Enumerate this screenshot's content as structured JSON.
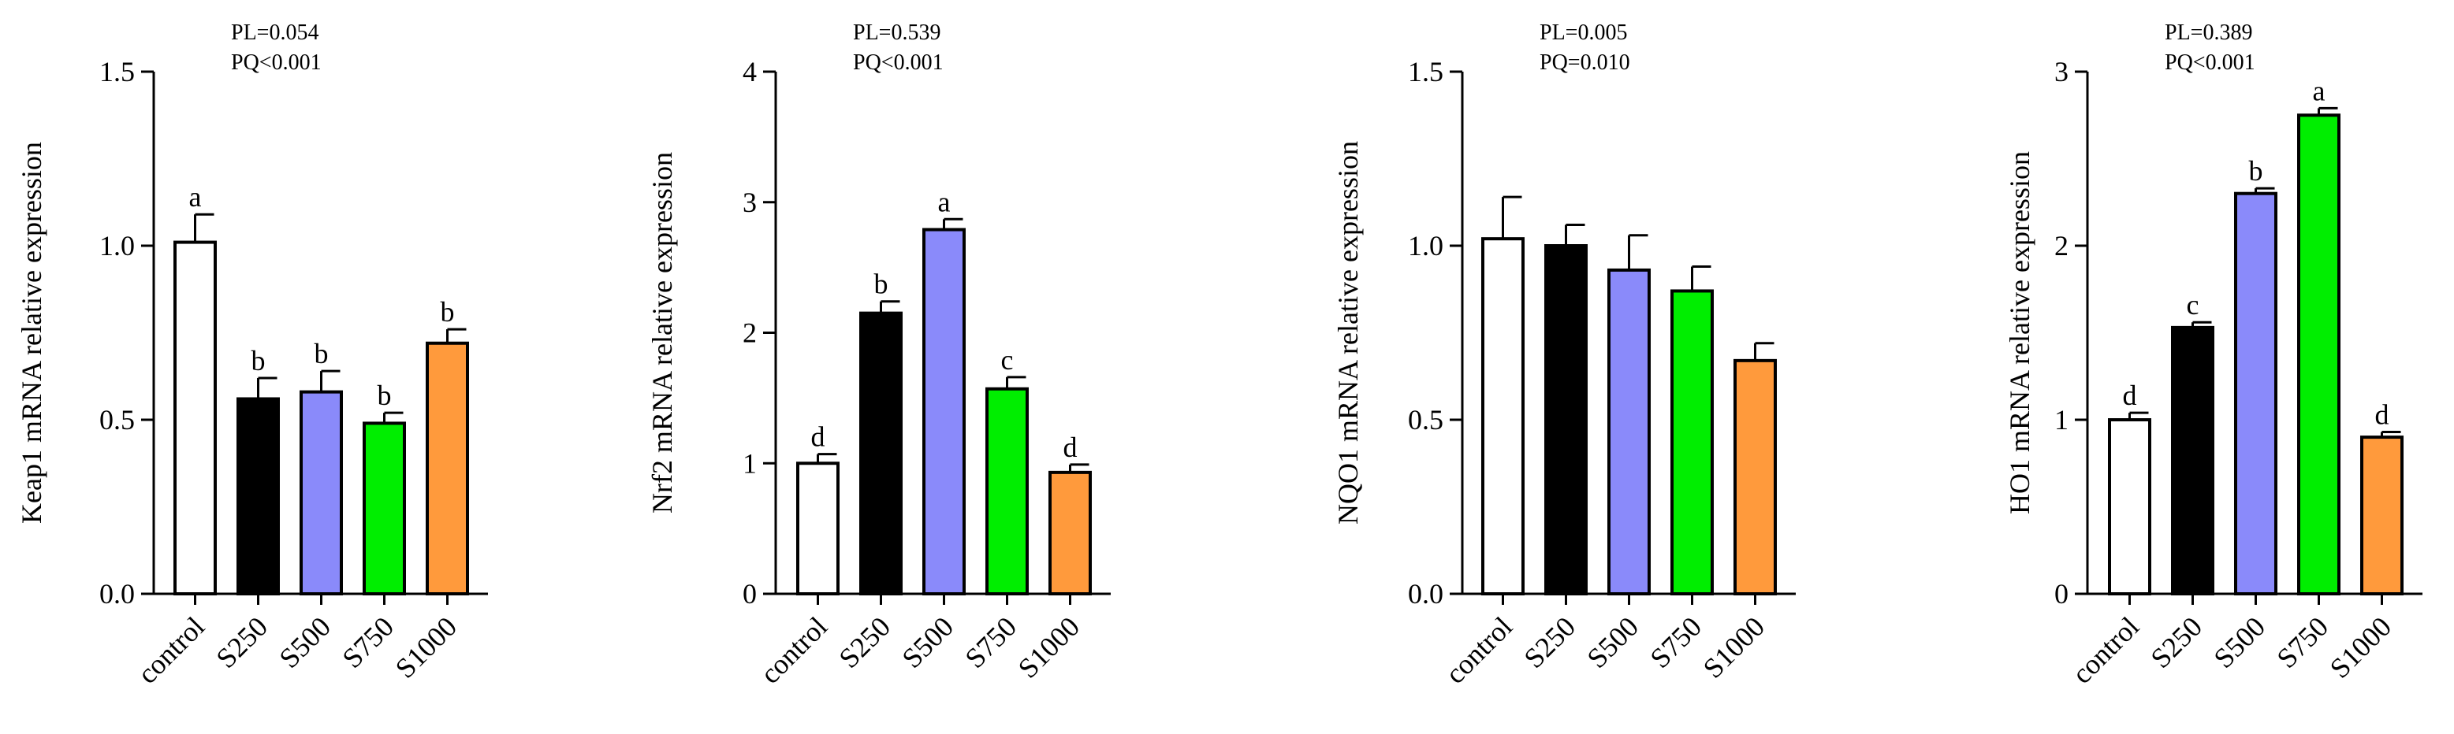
{
  "colors": {
    "control": "#ffffff",
    "S250": "#000000",
    "S500": "#8a8afa",
    "S750": "#00ee00",
    "S1000": "#ff9a3c",
    "axis": "#000000"
  },
  "chart_data": [
    {
      "type": "bar",
      "categories": [
        "control",
        "S250",
        "S500",
        "S750",
        "S1000"
      ],
      "values": [
        1.01,
        0.56,
        0.58,
        0.49,
        0.72
      ],
      "errors": [
        0.08,
        0.06,
        0.06,
        0.03,
        0.04
      ],
      "letters": [
        "a",
        "b",
        "b",
        "b",
        "b"
      ],
      "stat_lines": [
        "PL=0.054",
        "PQ<0.001"
      ],
      "ylabel": "Keap1 mRNA relative expression",
      "ylim": [
        0,
        1.5
      ],
      "yticks": [
        0,
        0.5,
        1.0,
        1.5
      ],
      "ytick_labels": [
        "0.0",
        "0.5",
        "1.0",
        "1.5"
      ]
    },
    {
      "type": "bar",
      "categories": [
        "control",
        "S250",
        "S500",
        "S750",
        "S1000"
      ],
      "values": [
        1.0,
        2.15,
        2.79,
        1.57,
        0.93
      ],
      "errors": [
        0.07,
        0.09,
        0.08,
        0.09,
        0.06
      ],
      "letters": [
        "d",
        "b",
        "a",
        "c",
        "d"
      ],
      "stat_lines": [
        "PL=0.539",
        "PQ<0.001"
      ],
      "ylabel": "Nrf2 mRNA relative expression",
      "ylim": [
        0,
        4
      ],
      "yticks": [
        0,
        1,
        2,
        3,
        4
      ],
      "ytick_labels": [
        "0",
        "1",
        "2",
        "3",
        "4"
      ]
    },
    {
      "type": "bar",
      "categories": [
        "control",
        "S250",
        "S500",
        "S750",
        "S1000"
      ],
      "values": [
        1.02,
        1.0,
        0.93,
        0.87,
        0.67
      ],
      "errors": [
        0.12,
        0.06,
        0.1,
        0.07,
        0.05
      ],
      "letters": [
        "",
        "",
        "",
        "",
        ""
      ],
      "stat_lines": [
        "PL=0.005",
        "PQ=0.010"
      ],
      "ylabel": "NQO1 mRNA relative expression",
      "ylim": [
        0,
        1.5
      ],
      "yticks": [
        0,
        0.5,
        1.0,
        1.5
      ],
      "ytick_labels": [
        "0.0",
        "0.5",
        "1.0",
        "1.5"
      ]
    },
    {
      "type": "bar",
      "categories": [
        "control",
        "S250",
        "S500",
        "S750",
        "S1000"
      ],
      "values": [
        1.0,
        1.53,
        2.3,
        2.75,
        0.9
      ],
      "errors": [
        0.04,
        0.03,
        0.03,
        0.04,
        0.03
      ],
      "letters": [
        "d",
        "c",
        "b",
        "a",
        "d"
      ],
      "stat_lines": [
        "PL=0.389",
        "PQ<0.001"
      ],
      "ylabel": "HO1 mRNA relative expression",
      "ylim": [
        0,
        3
      ],
      "yticks": [
        0,
        1,
        2,
        3
      ],
      "ytick_labels": [
        "0",
        "1",
        "2",
        "3"
      ]
    }
  ]
}
